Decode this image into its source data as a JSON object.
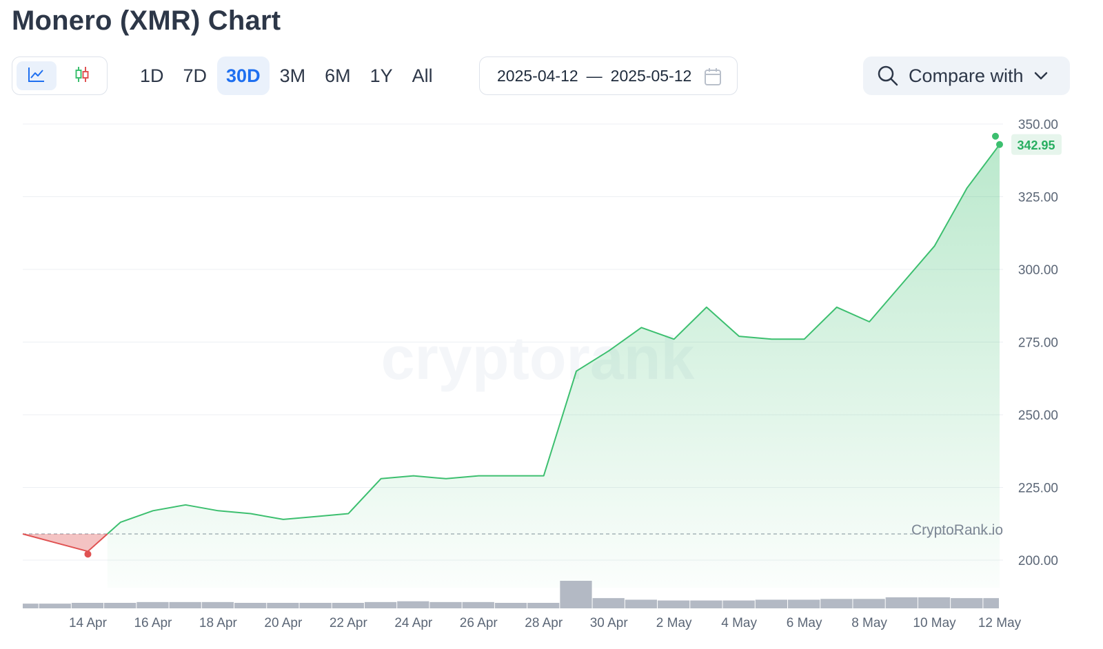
{
  "page": {
    "title": "Monero (XMR) Chart"
  },
  "toolbar": {
    "chart_types": [
      {
        "name": "line-chart-icon",
        "active": true
      },
      {
        "name": "candlestick-icon",
        "active": false
      }
    ],
    "ranges": [
      "1D",
      "7D",
      "30D",
      "3M",
      "6M",
      "1Y",
      "All"
    ],
    "active_range": "30D",
    "date_from": "2025-04-12",
    "date_sep": "—",
    "date_to": "2025-05-12",
    "compare_label": "Compare with"
  },
  "colors": {
    "up": "#3cbf6f",
    "down": "#e05252",
    "accent": "#1e6ff0",
    "volume": "#b3b9c4"
  },
  "chart_data": {
    "type": "area",
    "title": "Monero (XMR) Chart",
    "x": [
      "Apr 12",
      "Apr 13",
      "Apr 14",
      "Apr 15",
      "Apr 16",
      "Apr 17",
      "Apr 18",
      "Apr 19",
      "Apr 20",
      "Apr 21",
      "Apr 22",
      "Apr 23",
      "Apr 24",
      "Apr 25",
      "Apr 26",
      "Apr 27",
      "Apr 28",
      "Apr 29",
      "Apr 30",
      "May 1",
      "May 2",
      "May 3",
      "May 4",
      "May 5",
      "May 6",
      "May 7",
      "May 8",
      "May 9",
      "May 10",
      "May 11",
      "May 12"
    ],
    "series": [
      {
        "values": [
          209,
          206,
          203,
          213,
          217,
          219,
          217,
          216,
          214,
          215,
          216,
          228,
          229,
          228,
          229,
          229,
          229,
          265,
          272,
          280,
          276,
          287,
          277,
          276,
          276,
          287,
          282,
          295,
          308,
          328,
          342.95
        ]
      }
    ],
    "volume": [
      6,
      6,
      7,
      7,
      8,
      8,
      8,
      7,
      7,
      7,
      7,
      8,
      9,
      8,
      8,
      7,
      7,
      35,
      13,
      11,
      10,
      10,
      10,
      11,
      11,
      12,
      12,
      14,
      14,
      13,
      13
    ],
    "xtick_labels": [
      "14 Apr",
      "16 Apr",
      "18 Apr",
      "20 Apr",
      "22 Apr",
      "24 Apr",
      "26 Apr",
      "28 Apr",
      "30 Apr",
      "2 May",
      "4 May",
      "6 May",
      "8 May",
      "10 May",
      "12 May"
    ],
    "ytick_labels": [
      "350.00",
      "325.00",
      "300.00",
      "275.00",
      "250.00",
      "225.00",
      "200.00"
    ],
    "ylim": [
      200,
      350
    ],
    "baseline": 209,
    "last_value_label": "342.95",
    "credit": "CryptoRank.io",
    "watermark": "cryptorank",
    "grid": true
  }
}
